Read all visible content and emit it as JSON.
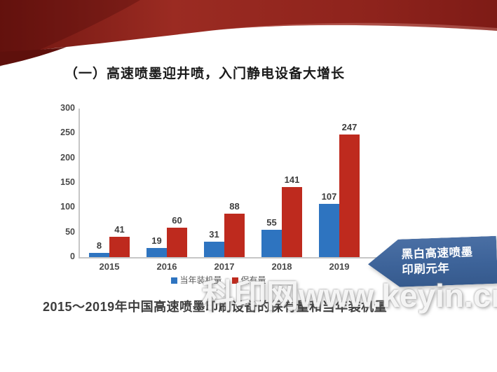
{
  "slide": {
    "title": "（一）高速喷墨迎井喷，入门静电设备大增长",
    "caption": "2015～2019年中国高速喷墨印刷设备的保有量和当年装机量",
    "watermark": "科印网www.keyin.cn",
    "banner": {
      "line1": "黑白高速喷墨",
      "line2": "印刷元年"
    }
  },
  "colors": {
    "bar_blue": "#2E74C0",
    "bar_red": "#BE2A1E",
    "banner_blue": "#3D6399",
    "header_red": "#8E231C",
    "axis_gray": "#C6C6C6"
  },
  "chart_data": {
    "type": "bar",
    "categories": [
      "2015",
      "2016",
      "2017",
      "2018",
      "2019"
    ],
    "series": [
      {
        "name": "当年装机量",
        "key": "installed",
        "color": "#2E74C0",
        "values": [
          8,
          19,
          31,
          55,
          107
        ]
      },
      {
        "name": "保有量",
        "key": "holdings",
        "color": "#BE2A1E",
        "values": [
          41,
          60,
          88,
          141,
          247
        ]
      }
    ],
    "title": "",
    "xlabel": "",
    "ylabel": "",
    "ylim": [
      0,
      300
    ],
    "yticks": [
      0,
      50,
      100,
      150,
      200,
      250,
      300
    ],
    "grid": false,
    "legend_position": "bottom"
  }
}
